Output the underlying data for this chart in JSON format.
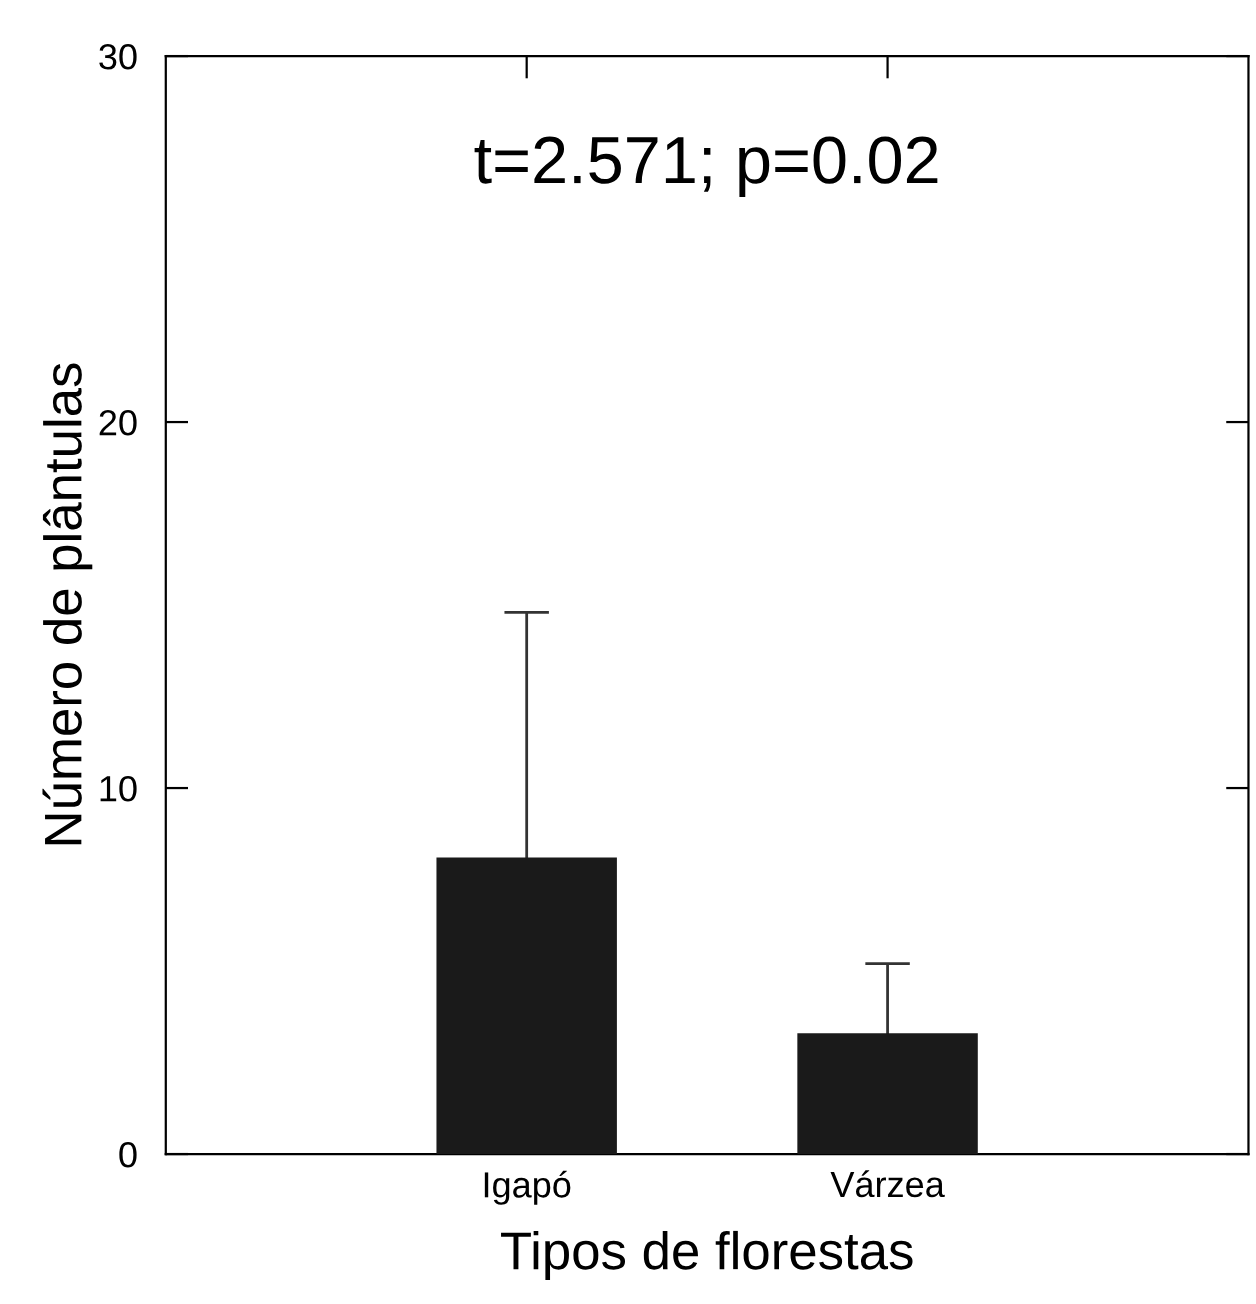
{
  "chart_data": {
    "type": "bar",
    "xlabel": "Tipos de florestas",
    "ylabel": "Número de plântulas",
    "categories": [
      "Igapó",
      "Várzea"
    ],
    "values": [
      8.1,
      3.3
    ],
    "errors": [
      6.7,
      1.9
    ],
    "color": "#1a1a1a",
    "ylim": [
      0,
      30
    ],
    "yticks": [
      0,
      10,
      20,
      30
    ],
    "grid": false,
    "legend": false,
    "annotations": [
      "t=2.571; p=0.02"
    ]
  }
}
